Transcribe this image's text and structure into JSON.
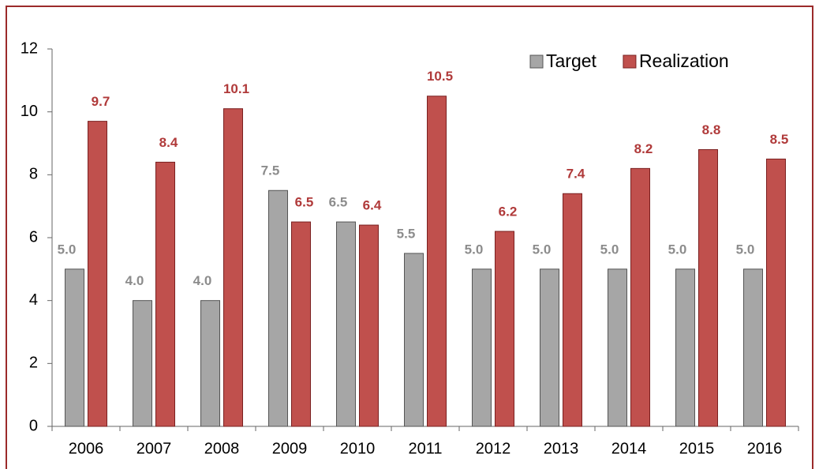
{
  "chart_data": {
    "type": "bar",
    "categories": [
      "2006",
      "2007",
      "2008",
      "2009",
      "2010",
      "2011",
      "2012",
      "2013",
      "2014",
      "2015",
      "2016"
    ],
    "series": [
      {
        "name": "Target",
        "color": "#a6a6a6",
        "label_color": "#8c8c8c",
        "values": [
          5.0,
          4.0,
          4.0,
          7.5,
          6.5,
          5.5,
          5.0,
          5.0,
          5.0,
          5.0,
          5.0
        ],
        "value_labels": [
          "5.0",
          "4.0",
          "4.0",
          "7.5",
          "6.5",
          "5.5",
          "5.0",
          "5.0",
          "5.0",
          "5.0",
          "5.0"
        ]
      },
      {
        "name": "Realization",
        "color": "#c0504d",
        "label_color": "#b03a3a",
        "values": [
          9.7,
          8.4,
          10.1,
          6.5,
          6.4,
          10.5,
          6.2,
          7.4,
          8.2,
          8.8,
          8.5
        ],
        "value_labels": [
          "9.7",
          "8.4",
          "10.1",
          "6.5",
          "6.4",
          "10.5",
          "6.2",
          "7.4",
          "8.2",
          "8.8",
          "8.5"
        ]
      }
    ],
    "ylim": [
      0,
      12
    ],
    "yticks": [
      0,
      2,
      4,
      6,
      8,
      10,
      12
    ],
    "grid": false,
    "legend": "upper right"
  }
}
